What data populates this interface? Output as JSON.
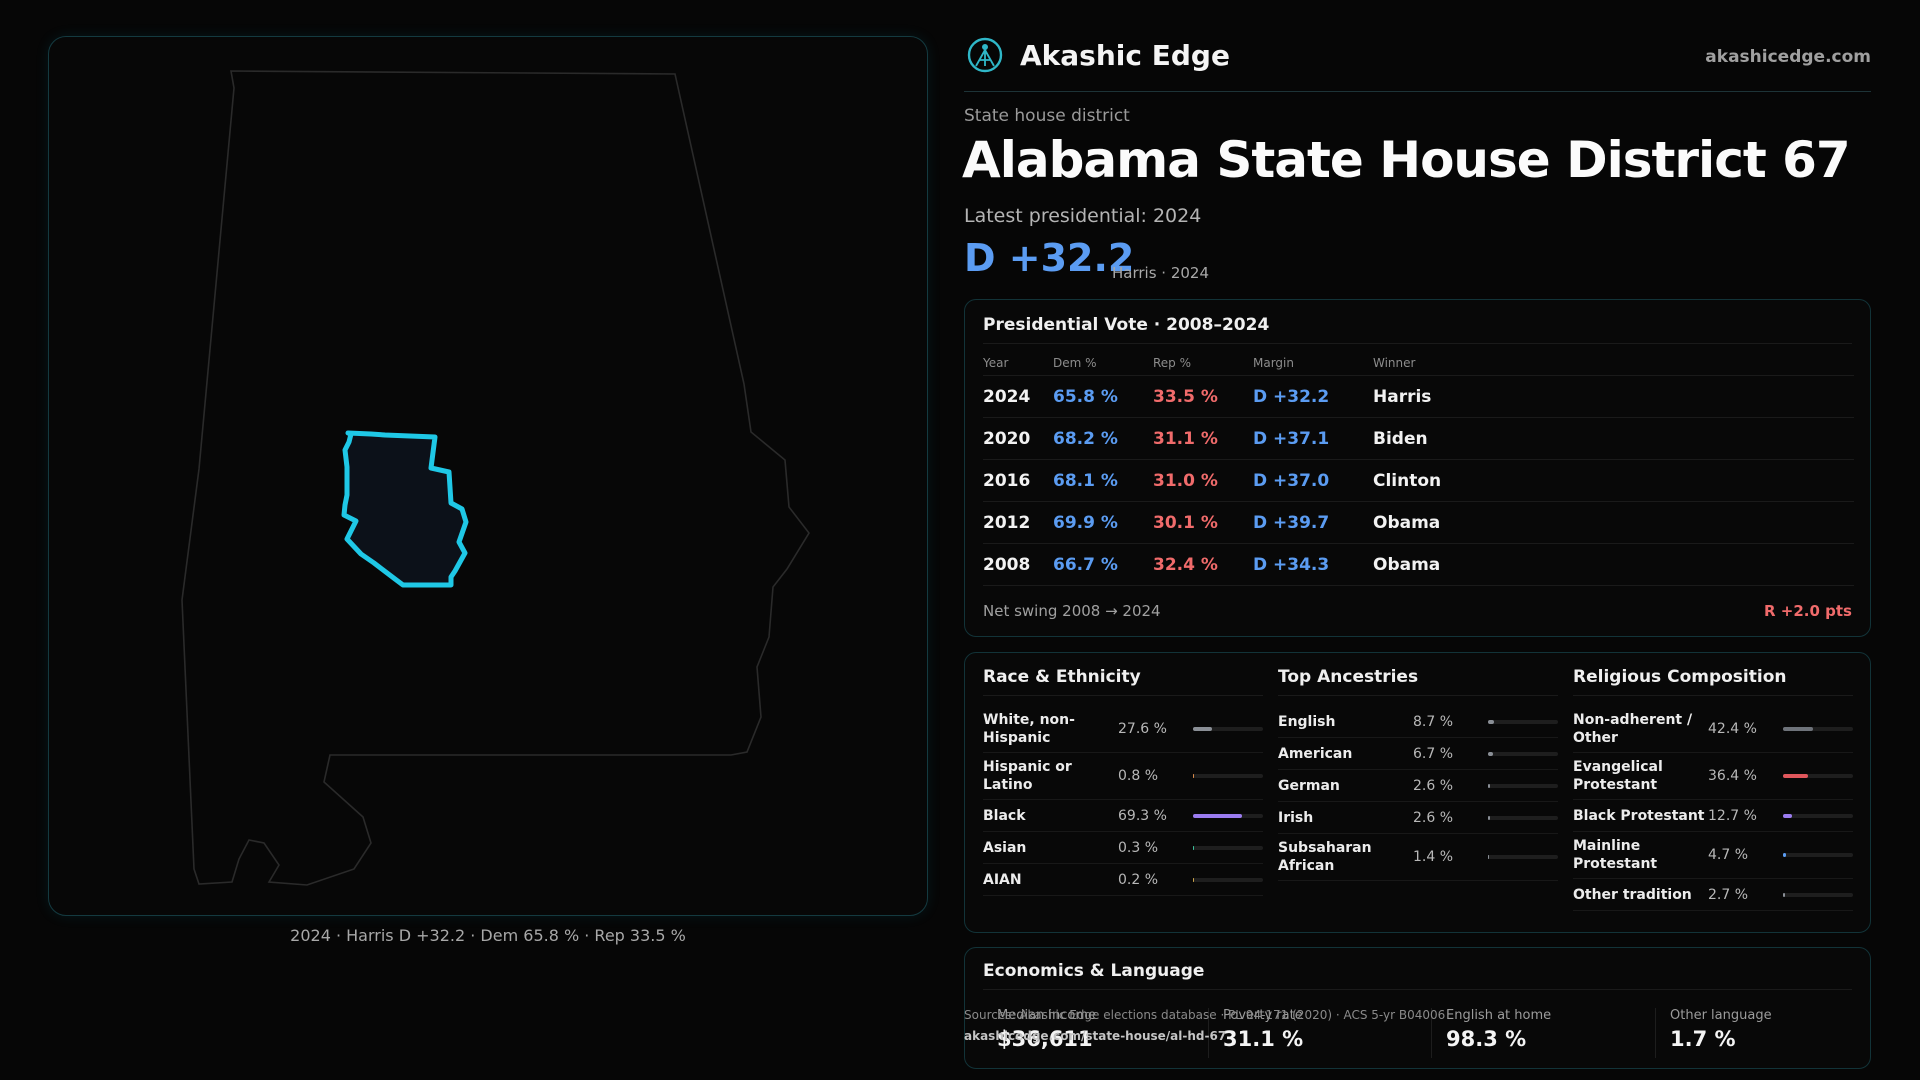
{
  "brand": {
    "name": "Akashic Edge",
    "url": "akashicedge.com"
  },
  "district": {
    "kind": "State house district",
    "title": "Alabama State House District 67",
    "latest_label": "Latest presidential: 2024",
    "margin": "D +32.2",
    "margin_sub": "Harris · 2024"
  },
  "map": {
    "caption": "2024 · Harris D +32.2 · Dem 65.8 % · Rep 33.5 %",
    "highlight_color": "#1fc8e6"
  },
  "presidential": {
    "title": "Presidential Vote · 2008–2024",
    "headers": {
      "year": "Year",
      "dem": "Dem %",
      "rep": "Rep %",
      "margin": "Margin",
      "winner": "Winner"
    },
    "rows": [
      {
        "year": "2024",
        "dem": "65.8 %",
        "rep": "33.5 %",
        "margin": "D +32.2",
        "winner": "Harris"
      },
      {
        "year": "2020",
        "dem": "68.2 %",
        "rep": "31.1 %",
        "margin": "D +37.1",
        "winner": "Biden"
      },
      {
        "year": "2016",
        "dem": "68.1 %",
        "rep": "31.0 %",
        "margin": "D +37.0",
        "winner": "Clinton"
      },
      {
        "year": "2012",
        "dem": "69.9 %",
        "rep": "30.1 %",
        "margin": "D +39.7",
        "winner": "Obama"
      },
      {
        "year": "2008",
        "dem": "66.7 %",
        "rep": "32.4 %",
        "margin": "D +34.3",
        "winner": "Obama"
      }
    ],
    "swing_label": "Net swing 2008 → 2024",
    "swing_value": "R +2.0 pts"
  },
  "race": {
    "title": "Race & Ethnicity",
    "rows": [
      {
        "name": "White, non-Hispanic",
        "value": "27.6 %",
        "fraction": 0.276,
        "color": "#8a8f96"
      },
      {
        "name": "Hispanic or Latino",
        "value": "0.8 %",
        "fraction": 0.008,
        "color": "#d98a4a"
      },
      {
        "name": "Black",
        "value": "69.3 %",
        "fraction": 0.693,
        "color": "#9b7cf0"
      },
      {
        "name": "Asian",
        "value": "0.3 %",
        "fraction": 0.003,
        "color": "#3bbf9a"
      },
      {
        "name": "AIAN",
        "value": "0.2 %",
        "fraction": 0.002,
        "color": "#c9a24a"
      }
    ]
  },
  "ancestries": {
    "title": "Top Ancestries",
    "rows": [
      {
        "name": "English",
        "value": "8.7 %",
        "fraction": 0.087,
        "color": "#8a8f96"
      },
      {
        "name": "American",
        "value": "6.7 %",
        "fraction": 0.067,
        "color": "#8a8f96"
      },
      {
        "name": "German",
        "value": "2.6 %",
        "fraction": 0.026,
        "color": "#8a8f96"
      },
      {
        "name": "Irish",
        "value": "2.6 %",
        "fraction": 0.026,
        "color": "#8a8f96"
      },
      {
        "name": "Subsaharan African",
        "value": "1.4 %",
        "fraction": 0.014,
        "color": "#8a8f96"
      }
    ]
  },
  "religion": {
    "title": "Religious Composition",
    "rows": [
      {
        "name": "Non-adherent / Other",
        "value": "42.4 %",
        "fraction": 0.424,
        "color": "#6e737a"
      },
      {
        "name": "Evangelical Protestant",
        "value": "36.4 %",
        "fraction": 0.364,
        "color": "#e0575c"
      },
      {
        "name": "Black Protestant",
        "value": "12.7 %",
        "fraction": 0.127,
        "color": "#9b7cf0"
      },
      {
        "name": "Mainline Protestant",
        "value": "4.7 %",
        "fraction": 0.047,
        "color": "#5b9cf2"
      },
      {
        "name": "Other tradition",
        "value": "2.7 %",
        "fraction": 0.027,
        "color": "#8a8f96"
      }
    ]
  },
  "economics": {
    "title": "Economics & Language",
    "stats": [
      {
        "label": "Median income",
        "value": "$36,611"
      },
      {
        "label": "Poverty rate",
        "value": "31.1 %"
      },
      {
        "label": "English at home",
        "value": "98.3 %"
      },
      {
        "label": "Other language",
        "value": "1.7 %"
      }
    ]
  },
  "footer": {
    "source": "Sources: Akashic Edge elections database · PL 94-171 (2020) · ACS 5-yr B04006",
    "url": "akashicedge.com/state-house/al-hd-67"
  }
}
